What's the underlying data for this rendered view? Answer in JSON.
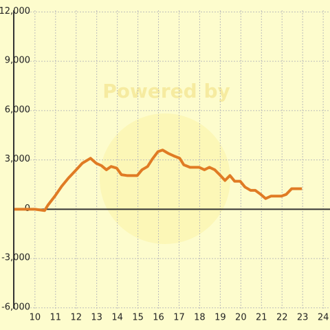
{
  "chart_data": {
    "type": "line",
    "watermark": "Powered by",
    "x": [
      9,
      10,
      10.47,
      10.63,
      10.97,
      11.3,
      11.63,
      11.97,
      12.3,
      12.7,
      12.97,
      13.23,
      13.47,
      13.7,
      13.97,
      14.2,
      14.47,
      14.97,
      15.2,
      15.47,
      15.7,
      15.97,
      16.2,
      16.47,
      16.73,
      17.03,
      17.23,
      17.53,
      17.97,
      18.23,
      18.47,
      18.73,
      18.97,
      19.23,
      19.47,
      19.7,
      19.97,
      20.2,
      20.47,
      20.7,
      20.97,
      21.2,
      21.47,
      21.97,
      22.2,
      22.47,
      22.97
    ],
    "series": [
      {
        "color": "#e07b24",
        "values": [
          0,
          0,
          -80,
          250,
          800,
          1400,
          1900,
          2350,
          2800,
          3100,
          2800,
          2650,
          2400,
          2600,
          2500,
          2100,
          2050,
          2050,
          2400,
          2600,
          3050,
          3500,
          3600,
          3400,
          3250,
          3100,
          2700,
          2550,
          2550,
          2400,
          2550,
          2400,
          2100,
          1750,
          2050,
          1700,
          1700,
          1350,
          1150,
          1150,
          900,
          650,
          800,
          800,
          900,
          1250,
          1250
        ]
      }
    ],
    "xlim": [
      8.97,
      24.33
    ],
    "xticks": [
      10,
      11,
      12,
      13,
      14,
      15,
      16,
      17,
      18,
      19,
      20,
      21,
      22,
      23,
      24
    ],
    "ylim": [
      -6050,
      12100
    ],
    "yticks": [
      {
        "value": -6000,
        "label": "-6,000"
      },
      {
        "value": -3000,
        "label": "-3,000"
      },
      0,
      {
        "value": 3000,
        "label": "3,000"
      },
      {
        "value": 6000,
        "label": "6,000"
      },
      {
        "value": 9000,
        "label": "9,000"
      },
      {
        "value": 12000,
        "label": "12,000"
      }
    ],
    "grid": true
  }
}
